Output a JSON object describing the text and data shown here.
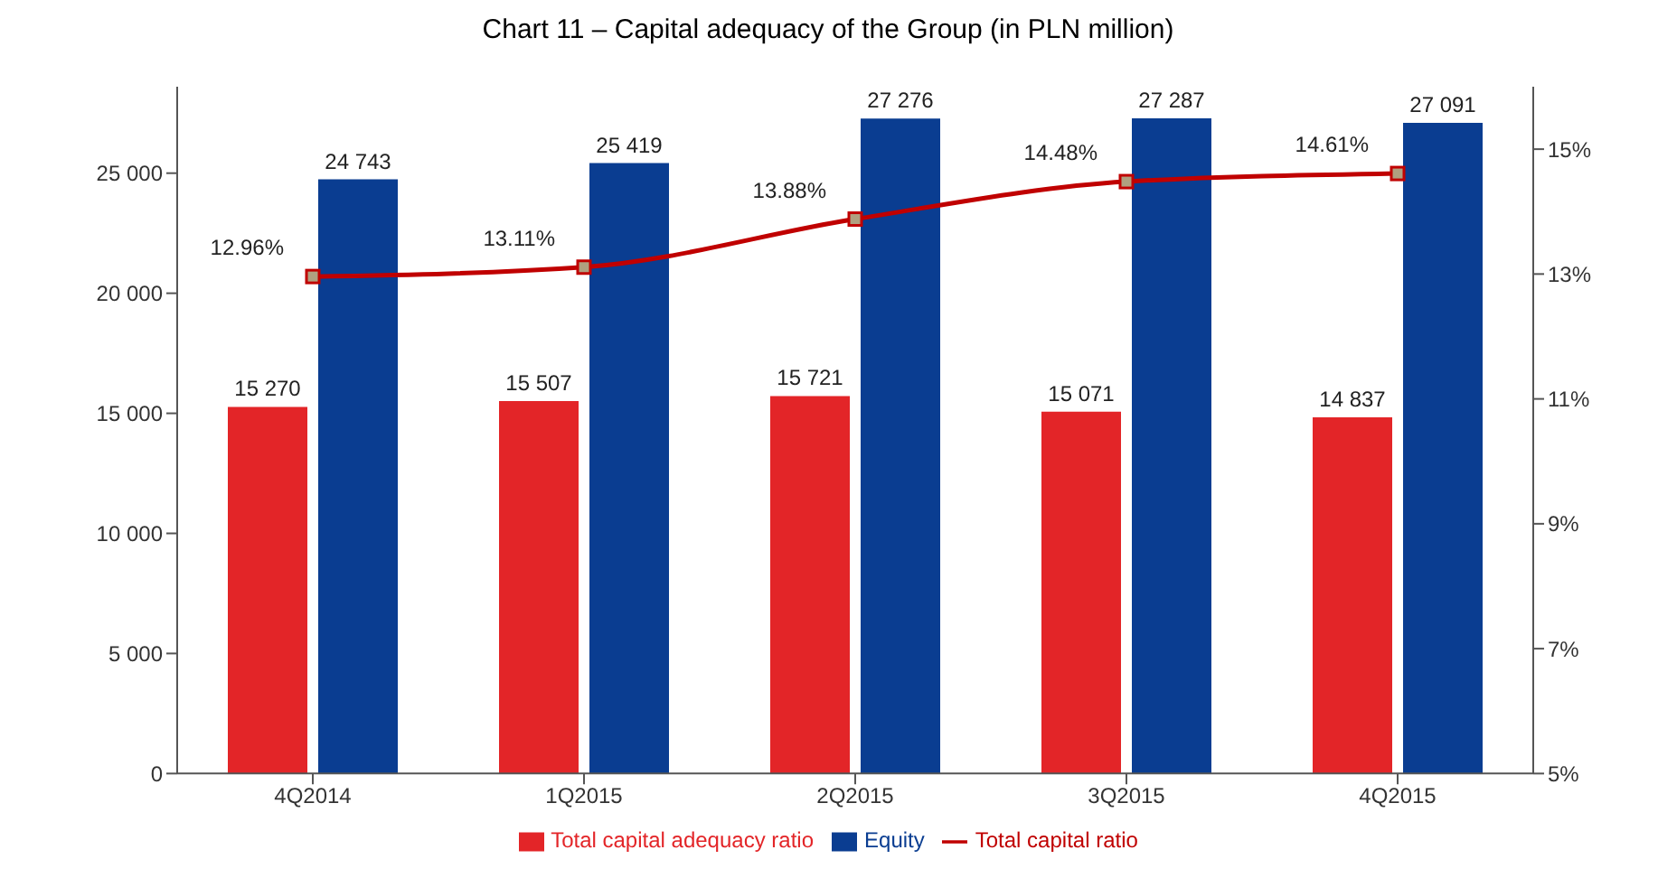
{
  "chart_data": {
    "type": "bar",
    "title": "Chart 11 – Capital adequacy of the Group (in PLN million)",
    "categories": [
      "4Q2014",
      "1Q2015",
      "2Q2015",
      "3Q2015",
      "4Q2015"
    ],
    "series": [
      {
        "name": "Total capital adequacy ratio",
        "color": "#e32528",
        "values": [
          15270,
          15507,
          15721,
          15071,
          14837
        ],
        "value_labels": [
          "15 270",
          "15 507",
          "15 721",
          "15 071",
          "14 837"
        ]
      },
      {
        "name": "Equity",
        "color": "#0a3d91",
        "values": [
          24743,
          25419,
          27276,
          27287,
          27091
        ],
        "value_labels": [
          "24 743",
          "25 419",
          "27 276",
          "27 287",
          "27 091"
        ]
      },
      {
        "name": "Total capital ratio",
        "type": "line",
        "axis": "y2",
        "color": "#c00000",
        "marker": "square",
        "values": [
          12.96,
          13.11,
          13.88,
          14.48,
          14.61
        ],
        "value_labels": [
          "12.96%",
          "13.11%",
          "13.88%",
          "14.48%",
          "14.61%"
        ]
      }
    ],
    "ylim": [
      0,
      28600
    ],
    "yticks": [
      {
        "value": 0,
        "label": "0"
      },
      {
        "value": 5000,
        "label": "5 000"
      },
      {
        "value": 10000,
        "label": "10 000"
      },
      {
        "value": 15000,
        "label": "15 000"
      },
      {
        "value": 20000,
        "label": "20 000"
      },
      {
        "value": 25000,
        "label": "25 000"
      }
    ],
    "y2lim": [
      5,
      16
    ],
    "y2ticks": [
      {
        "value": 5,
        "label": "5%"
      },
      {
        "value": 7,
        "label": "7%"
      },
      {
        "value": 9,
        "label": "9%"
      },
      {
        "value": 11,
        "label": "11%"
      },
      {
        "value": 13,
        "label": "13%"
      },
      {
        "value": 15,
        "label": "15%"
      }
    ],
    "legend": "bottom",
    "grid": false
  }
}
